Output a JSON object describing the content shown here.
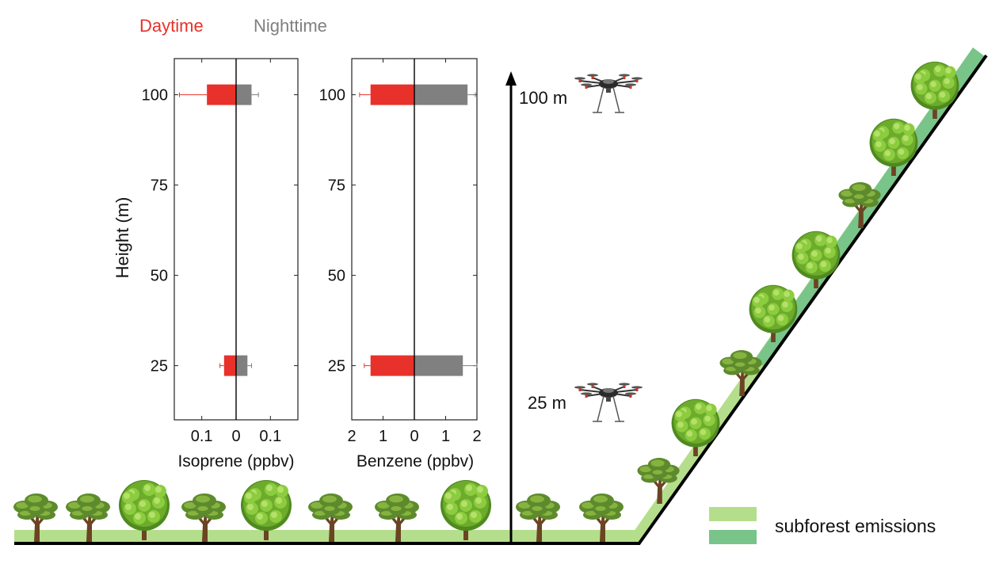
{
  "legend": {
    "daytime_label": "Daytime",
    "nighttime_label": "Nighttime",
    "daytime_color": "#e8312a",
    "nighttime_color": "#808080"
  },
  "ylabel": "Height (m)",
  "chart_data": [
    {
      "type": "bar",
      "orientation": "horizontal",
      "xlabel": "Isoprene (ppbv)",
      "ylabel": "Height (m)",
      "categories": [
        25,
        100
      ],
      "xlim": [
        -0.18,
        0.18
      ],
      "xtick_labels": [
        "0.1",
        "0",
        "0.1"
      ],
      "xtick_values": [
        -0.1,
        0,
        0.1
      ],
      "ylim": [
        10,
        110
      ],
      "ytick_values": [
        25,
        50,
        75,
        100
      ],
      "ytick_labels": [
        "25",
        "50",
        "75",
        "100"
      ],
      "series": [
        {
          "name": "Daytime",
          "values": [
            0.035,
            0.085
          ],
          "errors": [
            0.012,
            0.08
          ],
          "side": "left",
          "color": "#e8312a"
        },
        {
          "name": "Nighttime",
          "values": [
            0.033,
            0.045
          ],
          "errors": [
            0.012,
            0.02
          ],
          "side": "right",
          "color": "#808080"
        }
      ]
    },
    {
      "type": "bar",
      "orientation": "horizontal",
      "xlabel": "Benzene (ppbv)",
      "ylabel": "",
      "categories": [
        25,
        100
      ],
      "xlim": [
        -2.0,
        2.0
      ],
      "xtick_labels": [
        "2",
        "1",
        "0",
        "1",
        "2"
      ],
      "xtick_values": [
        -2,
        -1,
        0,
        1,
        2
      ],
      "ylim": [
        10,
        110
      ],
      "ytick_values": [
        25,
        50,
        75,
        100
      ],
      "ytick_labels": [
        "25",
        "50",
        "75",
        "100"
      ],
      "series": [
        {
          "name": "Daytime",
          "values": [
            1.4,
            1.4
          ],
          "errors": [
            0.2,
            0.35
          ],
          "side": "left",
          "color": "#e8312a"
        },
        {
          "name": "Nighttime",
          "values": [
            1.55,
            1.7
          ],
          "errors": [
            0.45,
            0.25
          ],
          "side": "right",
          "color": "#808080"
        }
      ]
    }
  ],
  "altitude_labels": [
    "100 m",
    "25 m"
  ],
  "emissions_legend": {
    "label": "subforest emissions",
    "colors": [
      "#b5de8c",
      "#79c489"
    ]
  },
  "icons": [
    "drone-icon",
    "tree-icon",
    "round-tree-icon"
  ]
}
